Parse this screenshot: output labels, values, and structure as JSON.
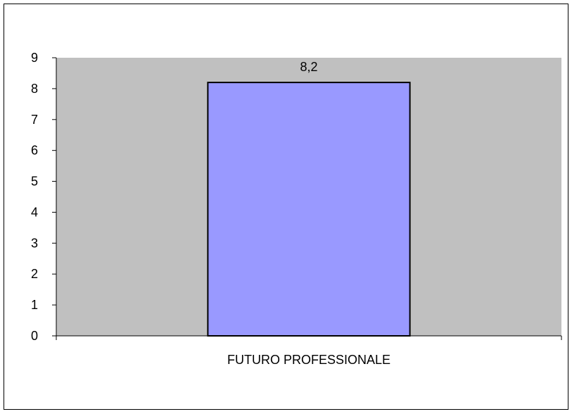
{
  "chart_data": {
    "type": "bar",
    "categories": [
      "FUTURO PROFESSIONALE"
    ],
    "values": [
      8.2
    ],
    "data_labels": [
      "8,2"
    ],
    "ylim": [
      0,
      9
    ],
    "yticks": [
      "0",
      "1",
      "2",
      "3",
      "4",
      "5",
      "6",
      "7",
      "8",
      "9"
    ],
    "grid": false,
    "legend": "none",
    "title": "",
    "xlabel": "",
    "ylabel": ""
  },
  "colors": {
    "plot_background": "#c0c0c0",
    "bar_fill": "#9999ff",
    "bar_stroke": "#000000",
    "axis": "#000000"
  }
}
